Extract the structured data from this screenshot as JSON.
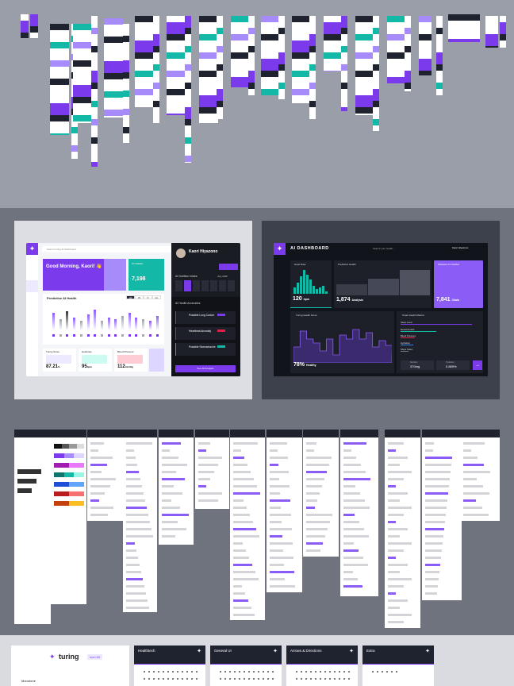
{
  "light_dashboard": {
    "search_placeholder": "Search turing AI Dashboard",
    "greeting": "Good Morning, Kaori! 👋",
    "ai_chatbot": {
      "label": "AI Chatbot",
      "value": "7,198"
    },
    "predictive_title": "Predictive AI Health",
    "range_tabs": [
      "1W",
      "1M",
      "1Y",
      "ALL"
    ],
    "stats": [
      {
        "label": "Turing Score",
        "value": "87.21",
        "unit": "%"
      },
      {
        "label": "Heartrate",
        "value": "95",
        "unit": "bpm"
      },
      {
        "label": "Blood Pressure",
        "value": "112",
        "unit": "mm/Hg"
      }
    ],
    "profile": {
      "name": "Kaori Hiyazono",
      "nutrition_title": "AI Nutrition Intake",
      "month": "July 2025",
      "anomalies_title": "AI Health Anomalies",
      "anomalies": [
        {
          "label": "Possible Lung Cancer",
          "color": "#7c3aed"
        },
        {
          "label": "Heartbeat Anomaly",
          "color": "#e11d48"
        },
        {
          "label": "Possible Stomachache",
          "color": "#14b8a6"
        }
      ],
      "cta": "See All Analysis"
    }
  },
  "dark_dashboard": {
    "title": "AI DASHBOARD",
    "search_placeholder": "Search your health...",
    "user": "Kaori Hiyazono",
    "heart_rate": {
      "label": "Heart Rate",
      "value": "120",
      "unit": "bpm"
    },
    "predictive": {
      "label": "Predictive Health",
      "value": "1,874",
      "unit": "Analysis"
    },
    "chatbot": {
      "label": "Wellness AI Chatbot",
      "value": "7,841",
      "unit": "Chats"
    },
    "score": {
      "label": "Turing Health Score",
      "value": "78%",
      "unit": "Healthy"
    },
    "metrics": {
      "label": "Smart Health Metrics",
      "items": [
        "Sleep Level",
        "Mental Health",
        "Blood Pressure",
        "Hydration",
        "Steps Taken"
      ]
    },
    "bottom": [
      {
        "label": "Nutrition",
        "value": "370mg"
      },
      {
        "label": "Hydration",
        "value": "0.889%"
      }
    ]
  },
  "icon_sets": {
    "brand": "turing",
    "badge": "Icon Kit",
    "section": "Monotone",
    "cards": [
      "Healthtech",
      "General UI",
      "Arrows & Directions",
      "Extra"
    ]
  },
  "colors": {
    "accent": "#7c3aed",
    "teal": "#14b8a6",
    "dark": "#1f2330"
  }
}
